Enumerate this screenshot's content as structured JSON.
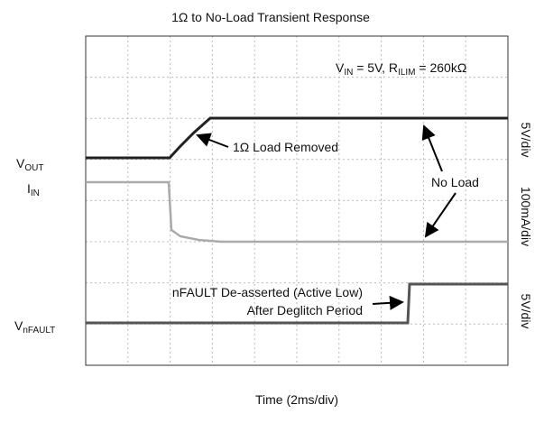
{
  "figure": {
    "title": "1Ω to No-Load Transient Response",
    "conditions": {
      "v": "V",
      "v_sub": "IN",
      "v_text": " = 5V, ",
      "r": "R",
      "r_sub": "ILIM",
      "r_text": " = 260kΩ"
    },
    "trace_labels": [
      {
        "main": "V",
        "sub": "OUT"
      },
      {
        "main": "I",
        "sub": "IN"
      },
      {
        "main": "V",
        "sub": "nFAULT"
      }
    ],
    "annotations": [
      "1Ω Load Removed",
      "No Load",
      "nFAULT De-asserted (Active Low)",
      "After Deglitch Period"
    ],
    "scales": [
      "5V/div",
      "100mA/div",
      "5V/div"
    ],
    "x_label": "Time (2ms/div)"
  }
}
